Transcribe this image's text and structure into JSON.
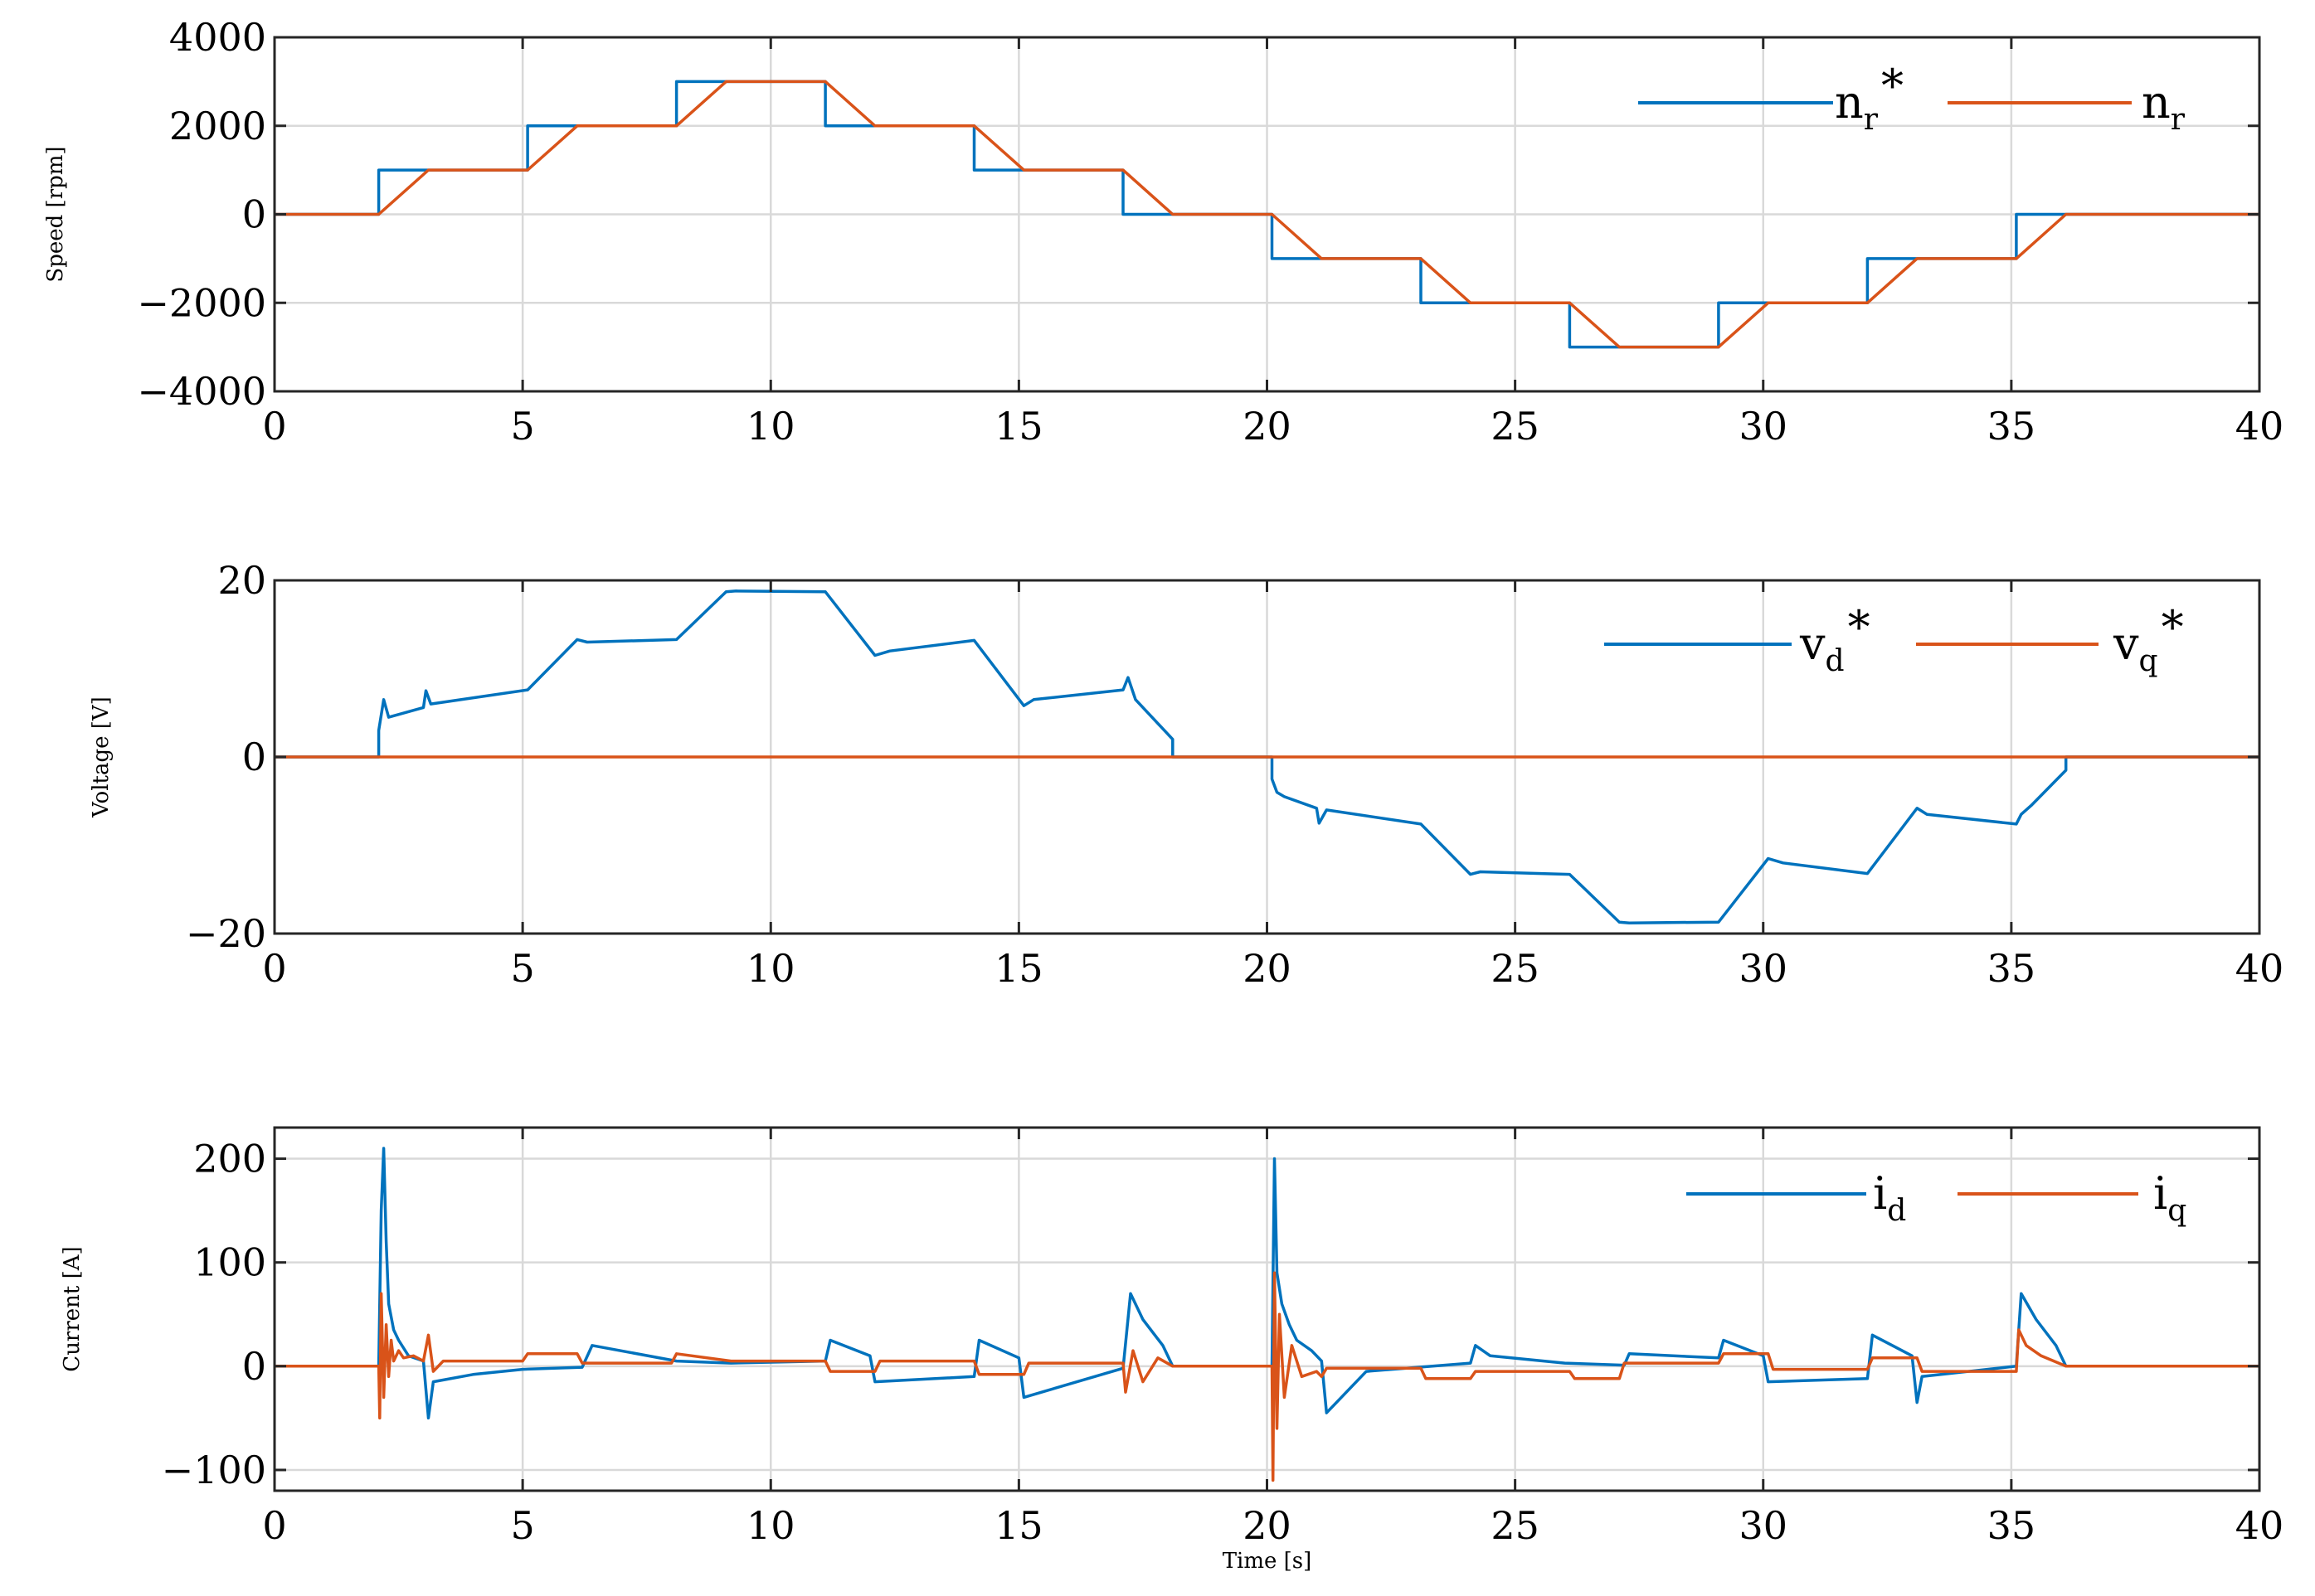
{
  "colors": {
    "series1": "#0072BD",
    "series2": "#D95319",
    "grid": "#d9d9d9",
    "axis": "#262626"
  },
  "chart_data": [
    {
      "type": "line",
      "ylabel": "Speed [rpm]",
      "xlabel": "",
      "xlim": [
        0,
        40
      ],
      "ylim": [
        -4000,
        4000
      ],
      "xticks": [
        0,
        5,
        10,
        15,
        20,
        25,
        30,
        35,
        40
      ],
      "xticklabels": [
        "0",
        "5",
        "10",
        "15",
        "20",
        "25",
        "30",
        "35",
        "40"
      ],
      "yticks": [
        4000,
        2000,
        0,
        -2000,
        -4000
      ],
      "yticklabels": [
        "4000",
        "2000",
        "0",
        "−2000",
        "−4000"
      ],
      "grid": true,
      "legend_position": "top-right",
      "series": [
        {
          "name": "nr*",
          "legend": {
            "base": "n",
            "sub": "r",
            "sup": "*"
          },
          "x": [
            0,
            2.1,
            2.1,
            5.1,
            5.1,
            8.1,
            8.1,
            11.1,
            11.1,
            14.1,
            14.1,
            17.1,
            17.1,
            20.1,
            20.1,
            23.1,
            23.1,
            26.1,
            26.1,
            29.1,
            29.1,
            32.1,
            32.1,
            35.1,
            35.1,
            40
          ],
          "y": [
            0,
            0,
            1000,
            1000,
            2000,
            2000,
            3000,
            3000,
            2000,
            2000,
            1000,
            1000,
            0,
            0,
            -1000,
            -1000,
            -2000,
            -2000,
            -3000,
            -3000,
            -2000,
            -2000,
            -1000,
            -1000,
            0,
            0
          ]
        },
        {
          "name": "nr",
          "legend": {
            "base": "n",
            "sub": "r",
            "sup": ""
          },
          "x": [
            0,
            2.1,
            3.1,
            5.1,
            6.1,
            8.1,
            9.1,
            11.1,
            12.1,
            14.1,
            15.1,
            17.1,
            18.1,
            20.1,
            21.1,
            23.1,
            24.1,
            26.1,
            27.1,
            29.1,
            30.1,
            32.1,
            33.1,
            35.1,
            36.1,
            40
          ],
          "y": [
            0,
            0,
            1000,
            1000,
            2000,
            2000,
            3000,
            3000,
            2000,
            2000,
            1000,
            1000,
            0,
            0,
            -1000,
            -1000,
            -2000,
            -2000,
            -3000,
            -3000,
            -2000,
            -2000,
            -1000,
            -1000,
            0,
            0
          ]
        }
      ]
    },
    {
      "type": "line",
      "ylabel": "Voltage [V]",
      "xlabel": "",
      "xlim": [
        0,
        40
      ],
      "ylim": [
        -20,
        20
      ],
      "xticks": [
        0,
        5,
        10,
        15,
        20,
        25,
        30,
        35,
        40
      ],
      "xticklabels": [
        "0",
        "5",
        "10",
        "15",
        "20",
        "25",
        "30",
        "35",
        "40"
      ],
      "yticks": [
        20,
        0,
        -20
      ],
      "yticklabels": [
        "20",
        "0",
        "−20"
      ],
      "grid": true,
      "legend_position": "top-right",
      "series": [
        {
          "name": "vd*",
          "legend": {
            "base": "v",
            "sub": "d",
            "sup": "*"
          },
          "x": [
            0,
            2.1,
            2.1,
            2.2,
            2.3,
            3.0,
            3.05,
            3.15,
            5.1,
            6.1,
            6.3,
            8.1,
            9.1,
            9.3,
            11.1,
            12.1,
            12.4,
            14.1,
            15.1,
            15.3,
            17.1,
            17.2,
            17.35,
            18.1,
            18.1,
            20.1,
            20.1,
            20.2,
            20.35,
            21.0,
            21.05,
            21.2,
            23.1,
            24.1,
            24.3,
            26.1,
            27.1,
            27.3,
            29.1,
            30.1,
            30.4,
            32.1,
            33.1,
            33.3,
            35.1,
            35.2,
            35.4,
            36.1,
            36.1,
            40
          ],
          "y": [
            0,
            0,
            3,
            6.5,
            4.5,
            5.6,
            7.5,
            6,
            7.6,
            13.3,
            13,
            13.3,
            18.7,
            18.8,
            18.7,
            11.5,
            12,
            13.2,
            5.8,
            6.5,
            7.6,
            9,
            6.5,
            2,
            0,
            0,
            -2.5,
            -4,
            -4.5,
            -5.8,
            -7.5,
            -6,
            -7.6,
            -13.3,
            -13,
            -13.3,
            -18.7,
            -18.8,
            -18.7,
            -11.5,
            -12,
            -13.2,
            -5.8,
            -6.5,
            -7.6,
            -6.5,
            -5.5,
            -1.5,
            0,
            0
          ]
        },
        {
          "name": "vq*",
          "legend": {
            "base": "v",
            "sub": "q",
            "sup": "*"
          },
          "x": [
            0,
            40
          ],
          "y": [
            0,
            0
          ]
        }
      ]
    },
    {
      "type": "line",
      "ylabel": "Current [A]",
      "xlabel": "Time [s]",
      "xlim": [
        0,
        40
      ],
      "ylim": [
        -120,
        230
      ],
      "xticks": [
        0,
        5,
        10,
        15,
        20,
        25,
        30,
        35,
        40
      ],
      "xticklabels": [
        "0",
        "5",
        "10",
        "15",
        "20",
        "25",
        "30",
        "35",
        "40"
      ],
      "yticks": [
        200,
        100,
        0,
        -100
      ],
      "yticklabels": [
        "200",
        "100",
        "0",
        "−100"
      ],
      "grid": true,
      "legend_position": "top-right",
      "series": [
        {
          "name": "id",
          "legend": {
            "base": "i",
            "sub": "d",
            "sup": ""
          },
          "x": [
            0,
            2.1,
            2.15,
            2.2,
            2.25,
            2.3,
            2.4,
            2.5,
            2.7,
            3.0,
            3.1,
            3.2,
            4.0,
            5.0,
            6.2,
            6.4,
            8.1,
            9.2,
            11.1,
            11.2,
            12.0,
            12.1,
            14.1,
            14.2,
            15.0,
            15.1,
            17.1,
            17.25,
            17.5,
            17.9,
            18.1,
            20.1,
            20.15,
            20.2,
            20.3,
            20.45,
            20.6,
            20.9,
            21.1,
            21.2,
            22.0,
            24.1,
            24.2,
            24.5,
            26.0,
            27.2,
            27.3,
            29.1,
            29.2,
            30.0,
            30.1,
            32.1,
            32.2,
            33.0,
            33.1,
            33.2,
            35.1,
            35.2,
            35.5,
            35.9,
            36.1,
            40
          ],
          "y": [
            0,
            0,
            150,
            210,
            120,
            60,
            35,
            25,
            10,
            5,
            -50,
            -15,
            -8,
            -3,
            -1,
            20,
            5,
            3,
            5,
            25,
            10,
            -15,
            -10,
            25,
            8,
            -30,
            -2,
            70,
            45,
            20,
            0,
            0,
            200,
            90,
            60,
            40,
            25,
            15,
            5,
            -45,
            -5,
            3,
            20,
            10,
            3,
            1,
            12,
            8,
            25,
            10,
            -15,
            -12,
            30,
            10,
            -35,
            -10,
            0,
            70,
            45,
            20,
            0,
            0
          ]
        },
        {
          "name": "iq",
          "legend": {
            "base": "i",
            "sub": "q",
            "sup": ""
          },
          "x": [
            0,
            2.1,
            2.12,
            2.15,
            2.2,
            2.25,
            2.3,
            2.35,
            2.4,
            2.5,
            2.6,
            2.8,
            3.0,
            3.1,
            3.2,
            3.4,
            5.0,
            5.1,
            6.1,
            6.2,
            8.0,
            8.1,
            9.2,
            11.1,
            11.2,
            12.1,
            12.2,
            14.1,
            14.2,
            15.1,
            15.2,
            17.1,
            17.15,
            17.3,
            17.5,
            17.8,
            18.1,
            20.1,
            20.12,
            20.15,
            20.2,
            20.25,
            20.35,
            20.5,
            20.7,
            21.0,
            21.1,
            21.2,
            23.1,
            23.2,
            24.1,
            24.2,
            26.1,
            26.2,
            27.1,
            27.2,
            29.1,
            29.2,
            30.1,
            30.2,
            32.1,
            32.2,
            33.1,
            33.2,
            35.1,
            35.15,
            35.3,
            35.6,
            36.1,
            40
          ],
          "y": [
            0,
            0,
            -50,
            70,
            -30,
            40,
            -10,
            25,
            5,
            15,
            8,
            10,
            5,
            30,
            -5,
            5,
            5,
            12,
            12,
            3,
            3,
            12,
            5,
            5,
            -5,
            -5,
            5,
            5,
            -8,
            -8,
            3,
            3,
            -25,
            15,
            -15,
            8,
            0,
            0,
            -110,
            90,
            -60,
            50,
            -30,
            20,
            -10,
            -5,
            -10,
            -2,
            -2,
            -12,
            -12,
            -5,
            -5,
            -12,
            -12,
            3,
            3,
            12,
            12,
            -3,
            -3,
            8,
            8,
            -5,
            -5,
            35,
            20,
            10,
            0,
            0
          ]
        }
      ]
    }
  ]
}
